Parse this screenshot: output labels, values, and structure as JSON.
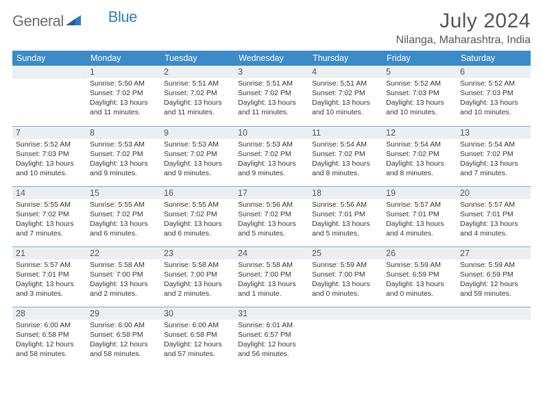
{
  "brand": {
    "text1": "General",
    "text2": "Blue"
  },
  "title": "July 2024",
  "location": "Nilanga, Maharashtra, India",
  "labels": {
    "sunrise": "Sunrise:",
    "sunset": "Sunset:",
    "daylight": "Daylight:"
  },
  "colors": {
    "header_bg": "#3b8bc9",
    "header_fg": "#ffffff",
    "daynum_bg": "#eceff2",
    "rule": "#7aa8cc",
    "logo_gray": "#6d6d6d",
    "logo_blue": "#2f7dc0"
  },
  "weekdays": [
    "Sunday",
    "Monday",
    "Tuesday",
    "Wednesday",
    "Thursday",
    "Friday",
    "Saturday"
  ],
  "weeks": [
    [
      null,
      {
        "d": "1",
        "sr": "5:50 AM",
        "ss": "7:02 PM",
        "dl": "13 hours and 11 minutes."
      },
      {
        "d": "2",
        "sr": "5:51 AM",
        "ss": "7:02 PM",
        "dl": "13 hours and 11 minutes."
      },
      {
        "d": "3",
        "sr": "5:51 AM",
        "ss": "7:02 PM",
        "dl": "13 hours and 11 minutes."
      },
      {
        "d": "4",
        "sr": "5:51 AM",
        "ss": "7:02 PM",
        "dl": "13 hours and 10 minutes."
      },
      {
        "d": "5",
        "sr": "5:52 AM",
        "ss": "7:03 PM",
        "dl": "13 hours and 10 minutes."
      },
      {
        "d": "6",
        "sr": "5:52 AM",
        "ss": "7:03 PM",
        "dl": "13 hours and 10 minutes."
      }
    ],
    [
      {
        "d": "7",
        "sr": "5:52 AM",
        "ss": "7:03 PM",
        "dl": "13 hours and 10 minutes."
      },
      {
        "d": "8",
        "sr": "5:53 AM",
        "ss": "7:02 PM",
        "dl": "13 hours and 9 minutes."
      },
      {
        "d": "9",
        "sr": "5:53 AM",
        "ss": "7:02 PM",
        "dl": "13 hours and 9 minutes."
      },
      {
        "d": "10",
        "sr": "5:53 AM",
        "ss": "7:02 PM",
        "dl": "13 hours and 9 minutes."
      },
      {
        "d": "11",
        "sr": "5:54 AM",
        "ss": "7:02 PM",
        "dl": "13 hours and 8 minutes."
      },
      {
        "d": "12",
        "sr": "5:54 AM",
        "ss": "7:02 PM",
        "dl": "13 hours and 8 minutes."
      },
      {
        "d": "13",
        "sr": "5:54 AM",
        "ss": "7:02 PM",
        "dl": "13 hours and 7 minutes."
      }
    ],
    [
      {
        "d": "14",
        "sr": "5:55 AM",
        "ss": "7:02 PM",
        "dl": "13 hours and 7 minutes."
      },
      {
        "d": "15",
        "sr": "5:55 AM",
        "ss": "7:02 PM",
        "dl": "13 hours and 6 minutes."
      },
      {
        "d": "16",
        "sr": "5:55 AM",
        "ss": "7:02 PM",
        "dl": "13 hours and 6 minutes."
      },
      {
        "d": "17",
        "sr": "5:56 AM",
        "ss": "7:02 PM",
        "dl": "13 hours and 5 minutes."
      },
      {
        "d": "18",
        "sr": "5:56 AM",
        "ss": "7:01 PM",
        "dl": "13 hours and 5 minutes."
      },
      {
        "d": "19",
        "sr": "5:57 AM",
        "ss": "7:01 PM",
        "dl": "13 hours and 4 minutes."
      },
      {
        "d": "20",
        "sr": "5:57 AM",
        "ss": "7:01 PM",
        "dl": "13 hours and 4 minutes."
      }
    ],
    [
      {
        "d": "21",
        "sr": "5:57 AM",
        "ss": "7:01 PM",
        "dl": "13 hours and 3 minutes."
      },
      {
        "d": "22",
        "sr": "5:58 AM",
        "ss": "7:00 PM",
        "dl": "13 hours and 2 minutes."
      },
      {
        "d": "23",
        "sr": "5:58 AM",
        "ss": "7:00 PM",
        "dl": "13 hours and 2 minutes."
      },
      {
        "d": "24",
        "sr": "5:58 AM",
        "ss": "7:00 PM",
        "dl": "13 hours and 1 minute."
      },
      {
        "d": "25",
        "sr": "5:59 AM",
        "ss": "7:00 PM",
        "dl": "13 hours and 0 minutes."
      },
      {
        "d": "26",
        "sr": "5:59 AM",
        "ss": "6:59 PM",
        "dl": "13 hours and 0 minutes."
      },
      {
        "d": "27",
        "sr": "5:59 AM",
        "ss": "6:59 PM",
        "dl": "12 hours and 59 minutes."
      }
    ],
    [
      {
        "d": "28",
        "sr": "6:00 AM",
        "ss": "6:58 PM",
        "dl": "12 hours and 58 minutes."
      },
      {
        "d": "29",
        "sr": "6:00 AM",
        "ss": "6:58 PM",
        "dl": "12 hours and 58 minutes."
      },
      {
        "d": "30",
        "sr": "6:00 AM",
        "ss": "6:58 PM",
        "dl": "12 hours and 57 minutes."
      },
      {
        "d": "31",
        "sr": "6:01 AM",
        "ss": "6:57 PM",
        "dl": "12 hours and 56 minutes."
      },
      null,
      null,
      null
    ]
  ]
}
